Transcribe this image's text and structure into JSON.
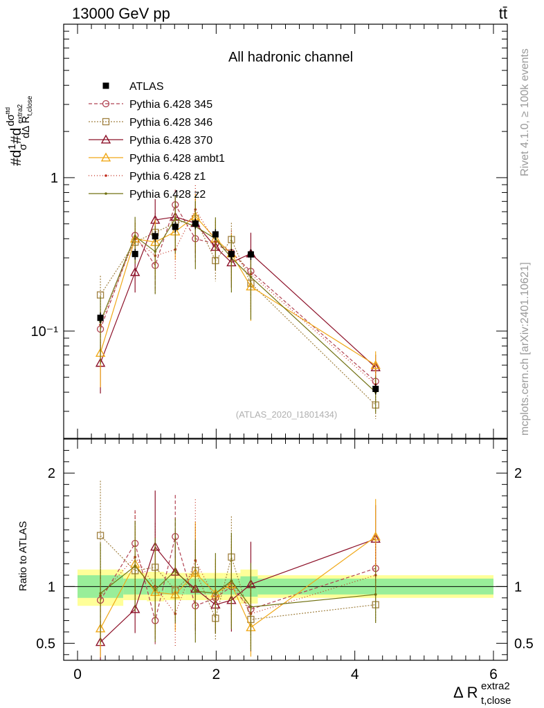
{
  "header": {
    "energy_label": "13000 GeV pp",
    "process_label": "tt̄"
  },
  "side_labels": {
    "rivet": "Rivet 4.1.0, ≥ 100k events",
    "mcplots": "mcplots.cern.ch [arXiv:2401.10621]"
  },
  "chart_data": {
    "type": "line",
    "title": "All hadronic channel",
    "analysis_id": "(ATLAS_2020_I1801434)",
    "ylabel": "#d1/σ#d dσ^ttd / dΔ R_t,close^extra2",
    "ylabel_parts": {
      "prefix": "#d",
      "one": "1",
      "sigma": "σ",
      "mid": "#d",
      "num": "dσ",
      "num_sup": "ttd",
      "den": "dΔ R",
      "den_sub": "t,close",
      "den_sup": "extra2"
    },
    "xlabel": {
      "main": "Δ R",
      "sup": "extra2",
      "sub": "t,close"
    },
    "ratio_ylabel": "Ratio to ATLAS",
    "xlim": [
      -0.2,
      6.2
    ],
    "ylim_log": [
      0.02,
      10
    ],
    "ratio_ylim": [
      0.35,
      2.3
    ],
    "x_ticks": [
      0,
      2,
      4,
      6
    ],
    "x_tick_labels": [
      "0",
      "2",
      "4",
      "6"
    ],
    "y_ticks": [
      0.1,
      1
    ],
    "y_tick_labels": [
      "10⁻¹",
      "1"
    ],
    "ratio_ticks": [
      0.5,
      1,
      2
    ],
    "ratio_tick_labels": [
      "0.5",
      "1",
      "2"
    ],
    "x": [
      0.33,
      0.83,
      1.12,
      1.41,
      1.7,
      1.99,
      2.22,
      2.5,
      4.3
    ],
    "atlas": {
      "name": "ATLAS",
      "values": [
        0.122,
        0.318,
        0.415,
        0.478,
        0.502,
        0.427,
        0.318,
        0.316,
        0.042
      ]
    },
    "ratio_bands": {
      "x_edges": [
        0,
        0.66,
        1.0,
        1.25,
        1.55,
        1.85,
        2.1,
        2.35,
        2.6,
        6.0
      ],
      "green_half": [
        0.1,
        0.07,
        0.07,
        0.07,
        0.07,
        0.07,
        0.07,
        0.09,
        0.07
      ],
      "yellow_lo": [
        0.17,
        0.12,
        0.13,
        0.12,
        0.12,
        0.12,
        0.12,
        0.15,
        0.1
      ],
      "yellow_hi": [
        0.15,
        0.12,
        0.13,
        0.12,
        0.12,
        0.12,
        0.12,
        0.15,
        0.1
      ]
    },
    "series": [
      {
        "name": "Pythia 6.428 345",
        "color": "#b04050",
        "dash": "5,3",
        "marker": "circle",
        "values": [
          0.103,
          0.42,
          0.268,
          0.665,
          0.4,
          0.37,
          0.325,
          0.245,
          0.047
        ],
        "ratio": [
          0.88,
          1.38,
          0.7,
          1.44,
          0.83,
          0.9,
          1.0,
          0.8,
          1.16
        ]
      },
      {
        "name": "Pythia 6.428 346",
        "color": "#a08040",
        "dash": "2,2",
        "marker": "square",
        "values": [
          0.172,
          0.38,
          0.44,
          0.505,
          0.54,
          0.288,
          0.395,
          0.205,
          0.033
        ],
        "ratio": [
          1.45,
          1.14,
          1.17,
          0.97,
          1.14,
          0.72,
          1.26,
          0.71,
          0.84
        ]
      },
      {
        "name": "Pythia 6.428 370",
        "color": "#8c1028",
        "dash": "",
        "marker": "triangle",
        "values": [
          0.062,
          0.242,
          0.53,
          0.555,
          0.505,
          0.353,
          0.28,
          0.32,
          0.058
        ],
        "ratio": [
          0.51,
          0.8,
          1.35,
          1.13,
          0.98,
          0.84,
          0.88,
          1.02,
          1.42
        ]
      },
      {
        "name": "Pythia 6.428 ambt1",
        "color": "#f0a818",
        "dash": "",
        "marker": "triangle",
        "values": [
          0.072,
          0.4,
          0.38,
          0.445,
          0.56,
          0.4,
          0.32,
          0.195,
          0.06
        ],
        "ratio": [
          0.63,
          1.2,
          0.95,
          0.93,
          1.12,
          0.94,
          1.02,
          0.64,
          1.44
        ]
      },
      {
        "name": "Pythia 6.428 z1",
        "color": "#c02818",
        "dash": "1,3",
        "marker": "dot",
        "values": [
          0.11,
          0.4,
          0.31,
          0.34,
          0.62,
          0.38,
          0.33,
          0.235,
          0.045
        ],
        "ratio": [
          0.92,
          1.26,
          1.0,
          0.76,
          1.23,
          0.89,
          1.05,
          0.76,
          1.1
        ]
      },
      {
        "name": "Pythia 6.428 z2",
        "color": "#707010",
        "dash": "",
        "marker": "dot",
        "values": [
          0.115,
          0.415,
          0.33,
          0.54,
          0.48,
          0.4,
          0.3,
          0.225,
          0.04
        ],
        "ratio": [
          0.94,
          1.18,
          0.97,
          1.14,
          0.96,
          0.94,
          1.05,
          0.82,
          0.93
        ]
      }
    ]
  }
}
